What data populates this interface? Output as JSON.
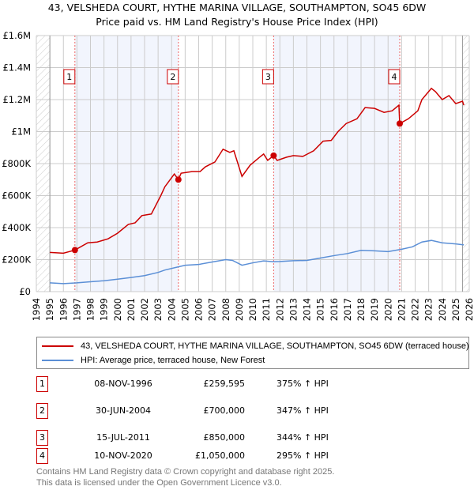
{
  "title": "43, VELSHEDA COURT, HYTHE MARINA VILLAGE, SOUTHAMPTON, SO45 6DW",
  "subtitle": "Price paid vs. HM Land Registry's House Price Index (HPI)",
  "chart_data": {
    "type": "line",
    "xlim": [
      1994,
      2026
    ],
    "ylim": [
      0,
      1600000
    ],
    "x_ticks": [
      "1994",
      "1995",
      "1996",
      "1997",
      "1998",
      "1999",
      "2000",
      "2001",
      "2002",
      "2003",
      "2004",
      "2005",
      "2006",
      "2007",
      "2008",
      "2009",
      "2010",
      "2011",
      "2012",
      "2013",
      "2014",
      "2015",
      "2016",
      "2017",
      "2018",
      "2019",
      "2020",
      "2021",
      "2022",
      "2023",
      "2024",
      "2025",
      "2026"
    ],
    "y_ticks": [
      {
        "v": 0,
        "label": "£0"
      },
      {
        "v": 200000,
        "label": "£200K"
      },
      {
        "v": 400000,
        "label": "£400K"
      },
      {
        "v": 600000,
        "label": "£600K"
      },
      {
        "v": 800000,
        "label": "£800K"
      },
      {
        "v": 1000000,
        "label": "£1M"
      },
      {
        "v": 1200000,
        "label": "£1.2M"
      },
      {
        "v": 1400000,
        "label": "£1.4M"
      },
      {
        "v": 1600000,
        "label": "£1.6M"
      }
    ],
    "grid": true,
    "series": [
      {
        "name": "43, VELSHEDA COURT, HYTHE MARINA VILLAGE, SOUTHAMPTON, SO45 6DW (terraced house)",
        "color": "#cc0000",
        "points": [
          [
            1995.0,
            245000
          ],
          [
            1996.0,
            240000
          ],
          [
            1996.85,
            259595
          ],
          [
            1997.8,
            305000
          ],
          [
            1998.5,
            310000
          ],
          [
            1999.3,
            330000
          ],
          [
            2000.0,
            365000
          ],
          [
            2000.8,
            420000
          ],
          [
            2001.3,
            430000
          ],
          [
            2001.8,
            475000
          ],
          [
            2002.5,
            485000
          ],
          [
            2003.2,
            600000
          ],
          [
            2003.5,
            655000
          ],
          [
            2004.2,
            735000
          ],
          [
            2004.5,
            700000
          ],
          [
            2004.7,
            740000
          ],
          [
            2005.5,
            750000
          ],
          [
            2006.1,
            750000
          ],
          [
            2006.5,
            780000
          ],
          [
            2007.2,
            810000
          ],
          [
            2007.8,
            890000
          ],
          [
            2008.3,
            870000
          ],
          [
            2008.6,
            880000
          ],
          [
            2009.2,
            720000
          ],
          [
            2009.8,
            790000
          ],
          [
            2010.5,
            840000
          ],
          [
            2010.8,
            860000
          ],
          [
            2011.1,
            820000
          ],
          [
            2011.54,
            850000
          ],
          [
            2011.8,
            820000
          ],
          [
            2012.5,
            840000
          ],
          [
            2013.0,
            850000
          ],
          [
            2013.7,
            845000
          ],
          [
            2014.5,
            880000
          ],
          [
            2015.2,
            940000
          ],
          [
            2015.8,
            945000
          ],
          [
            2016.3,
            1000000
          ],
          [
            2016.9,
            1050000
          ],
          [
            2017.7,
            1080000
          ],
          [
            2018.3,
            1150000
          ],
          [
            2019.0,
            1145000
          ],
          [
            2019.7,
            1120000
          ],
          [
            2020.3,
            1130000
          ],
          [
            2020.8,
            1165000
          ],
          [
            2020.86,
            1050000
          ],
          [
            2021.5,
            1080000
          ],
          [
            2022.2,
            1130000
          ],
          [
            2022.5,
            1200000
          ],
          [
            2023.2,
            1270000
          ],
          [
            2023.5,
            1250000
          ],
          [
            2024.0,
            1200000
          ],
          [
            2024.5,
            1225000
          ],
          [
            2025.0,
            1175000
          ],
          [
            2025.5,
            1190000
          ],
          [
            2025.6,
            1165000
          ]
        ]
      },
      {
        "name": "HPI: Average price, terraced house, New Forest",
        "color": "#5b8fd6",
        "points": [
          [
            1995.0,
            55000
          ],
          [
            1996.0,
            50000
          ],
          [
            1997.0,
            55000
          ],
          [
            1998.0,
            62000
          ],
          [
            1999.0,
            68000
          ],
          [
            2000.0,
            78000
          ],
          [
            2001.0,
            88000
          ],
          [
            2002.0,
            100000
          ],
          [
            2003.0,
            120000
          ],
          [
            2003.5,
            135000
          ],
          [
            2004.5,
            155000
          ],
          [
            2005.0,
            165000
          ],
          [
            2006.0,
            170000
          ],
          [
            2007.0,
            185000
          ],
          [
            2008.0,
            200000
          ],
          [
            2008.5,
            195000
          ],
          [
            2009.2,
            165000
          ],
          [
            2010.0,
            180000
          ],
          [
            2010.8,
            192000
          ],
          [
            2011.5,
            187000
          ],
          [
            2012.0,
            188000
          ],
          [
            2013.0,
            193000
          ],
          [
            2014.0,
            195000
          ],
          [
            2015.0,
            210000
          ],
          [
            2016.0,
            225000
          ],
          [
            2017.0,
            238000
          ],
          [
            2018.0,
            258000
          ],
          [
            2019.0,
            255000
          ],
          [
            2020.0,
            250000
          ],
          [
            2021.0,
            265000
          ],
          [
            2021.8,
            280000
          ],
          [
            2022.5,
            310000
          ],
          [
            2023.2,
            320000
          ],
          [
            2024.0,
            305000
          ],
          [
            2025.0,
            298000
          ],
          [
            2025.6,
            292000
          ]
        ]
      }
    ],
    "sales": [
      {
        "label": "1",
        "x": 1996.85,
        "price": 259595,
        "date": "08-NOV-1996",
        "price_text": "£259,595",
        "hpi_text": "375% ↑ HPI"
      },
      {
        "label": "2",
        "x": 2004.5,
        "price": 700000,
        "date": "30-JUN-2004",
        "price_text": "£700,000",
        "hpi_text": "347% ↑ HPI"
      },
      {
        "label": "3",
        "x": 2011.54,
        "price": 850000,
        "date": "15-JUL-2011",
        "price_text": "£850,000",
        "hpi_text": "344% ↑ HPI"
      },
      {
        "label": "4",
        "x": 2020.86,
        "price": 1050000,
        "date": "10-NOV-2020",
        "price_text": "£1,050,000",
        "hpi_text": "295% ↑ HPI"
      }
    ],
    "hatch_after": 2025.5
  },
  "footer": {
    "line1": "Contains HM Land Registry data © Crown copyright and database right 2025.",
    "line2": "This data is licensed under the Open Government Licence v3.0."
  }
}
